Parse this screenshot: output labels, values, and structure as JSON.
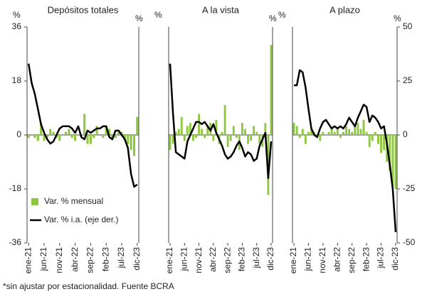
{
  "chart_data": [
    {
      "type": "bar_line",
      "title": "Depósitos totales",
      "y_unit": "%",
      "y2_unit": "%",
      "legend": "lower left",
      "categories": [
        "ene-21",
        null,
        null,
        null,
        null,
        "jun-21",
        null,
        null,
        null,
        null,
        "nov-21",
        null,
        null,
        null,
        null,
        "abr-22",
        null,
        null,
        null,
        null,
        "sep-22",
        null,
        null,
        null,
        null,
        "feb-23",
        null,
        null,
        null,
        null,
        "jul-23",
        null,
        null,
        null,
        null,
        "dic-23"
      ],
      "ylim": [
        -36,
        36
      ],
      "yticks": [
        -36,
        -18,
        0,
        18,
        36
      ],
      "y2lim": [
        -50,
        50
      ],
      "series": [
        {
          "name": "Var. % mensual",
          "kind": "bar",
          "color": "#8dc63f",
          "values": [
            -1,
            0,
            -1,
            -2,
            4,
            -2,
            -1,
            2,
            1,
            -1,
            -2,
            0,
            1,
            2,
            -1,
            -2,
            0,
            0,
            7,
            -3,
            -3,
            -1,
            3,
            0,
            -1,
            3,
            2,
            -1,
            -1,
            1,
            1,
            -2,
            -3,
            -5,
            -7,
            6
          ]
        },
        {
          "name": "Var. % i.a. (eje der.)",
          "kind": "line",
          "axis": "y2",
          "color": "#000000",
          "values": [
            33,
            24,
            19,
            12,
            5,
            1,
            -2,
            -4,
            -3,
            0,
            3,
            4,
            4,
            4,
            3,
            1,
            4,
            -1,
            -2,
            2,
            1,
            2,
            3,
            3,
            4,
            4,
            -1,
            -2,
            2,
            2,
            0,
            -2,
            -6,
            -18,
            -24,
            -23
          ]
        }
      ]
    },
    {
      "type": "bar_line",
      "title": "A la vista",
      "y_unit": "%",
      "y2_unit": "%",
      "categories": [
        "ene-21",
        null,
        null,
        null,
        null,
        "jun-21",
        null,
        null,
        null,
        null,
        "nov-21",
        null,
        null,
        null,
        null,
        "abr-22",
        null,
        null,
        null,
        null,
        "sep-22",
        null,
        null,
        null,
        null,
        "feb-23",
        null,
        null,
        null,
        null,
        "jul-23",
        null,
        null,
        null,
        null,
        "dic-23"
      ],
      "ylim": [
        -36,
        36
      ],
      "y2lim": [
        -50,
        50
      ],
      "series": [
        {
          "kind": "bar",
          "color": "#8dc63f",
          "values": [
            -5,
            -3,
            1,
            2,
            6,
            -2,
            3,
            4,
            -2,
            -1,
            7,
            2,
            -1,
            3,
            4,
            -2,
            5,
            -3,
            1,
            10,
            -4,
            -2,
            3,
            -1,
            -5,
            4,
            2,
            -3,
            -2,
            3,
            1,
            -3,
            -4,
            4,
            -20,
            30
          ]
        },
        {
          "kind": "line",
          "axis": "y2",
          "color": "#000000",
          "values": [
            33,
            10,
            -8,
            -9,
            -10,
            -11,
            -3,
            0,
            3,
            6,
            6,
            5,
            6,
            4,
            2,
            5,
            1,
            -2,
            -5,
            -9,
            -11,
            -10,
            -8,
            -5,
            -3,
            -6,
            -10,
            -8,
            -9,
            -12,
            -11,
            -5,
            -2,
            1,
            -20,
            -3
          ]
        }
      ]
    },
    {
      "type": "bar_line",
      "title": "A plazo",
      "y_unit": "%",
      "y2_unit": "%",
      "categories": [
        "ene-21",
        null,
        null,
        null,
        null,
        "jun-21",
        null,
        null,
        null,
        null,
        "nov-21",
        null,
        null,
        null,
        null,
        "abr-22",
        null,
        null,
        null,
        null,
        "sep-22",
        null,
        null,
        null,
        null,
        "feb-23",
        null,
        null,
        null,
        null,
        "jul-23",
        null,
        null,
        null,
        null,
        "dic-23"
      ],
      "ylim": [
        -36,
        36
      ],
      "y2lim": [
        -50,
        50
      ],
      "y2ticks": [
        -50,
        -25,
        0,
        25,
        50
      ],
      "series": [
        {
          "kind": "bar",
          "color": "#8dc63f",
          "values": [
            4,
            3,
            -1,
            2,
            -3,
            1,
            2,
            1,
            -1,
            -2,
            1,
            0,
            1,
            2,
            1,
            2,
            -1,
            1,
            3,
            2,
            1,
            3,
            4,
            2,
            5,
            1,
            -4,
            -2,
            1,
            -3,
            -6,
            -5,
            -9,
            -12,
            -17,
            -18
          ]
        },
        {
          "kind": "line",
          "axis": "y2",
          "color": "#000000",
          "values": [
            23,
            23,
            30,
            29,
            22,
            12,
            3,
            0,
            -1,
            3,
            6,
            7,
            5,
            3,
            4,
            3,
            4,
            3,
            5,
            8,
            6,
            4,
            8,
            11,
            14,
            13,
            6,
            9,
            8,
            6,
            3,
            4,
            -4,
            -14,
            -25,
            -45
          ]
        }
      ]
    }
  ],
  "footnote": "*sin ajustar por estacionalidad. Fuente BCRA"
}
